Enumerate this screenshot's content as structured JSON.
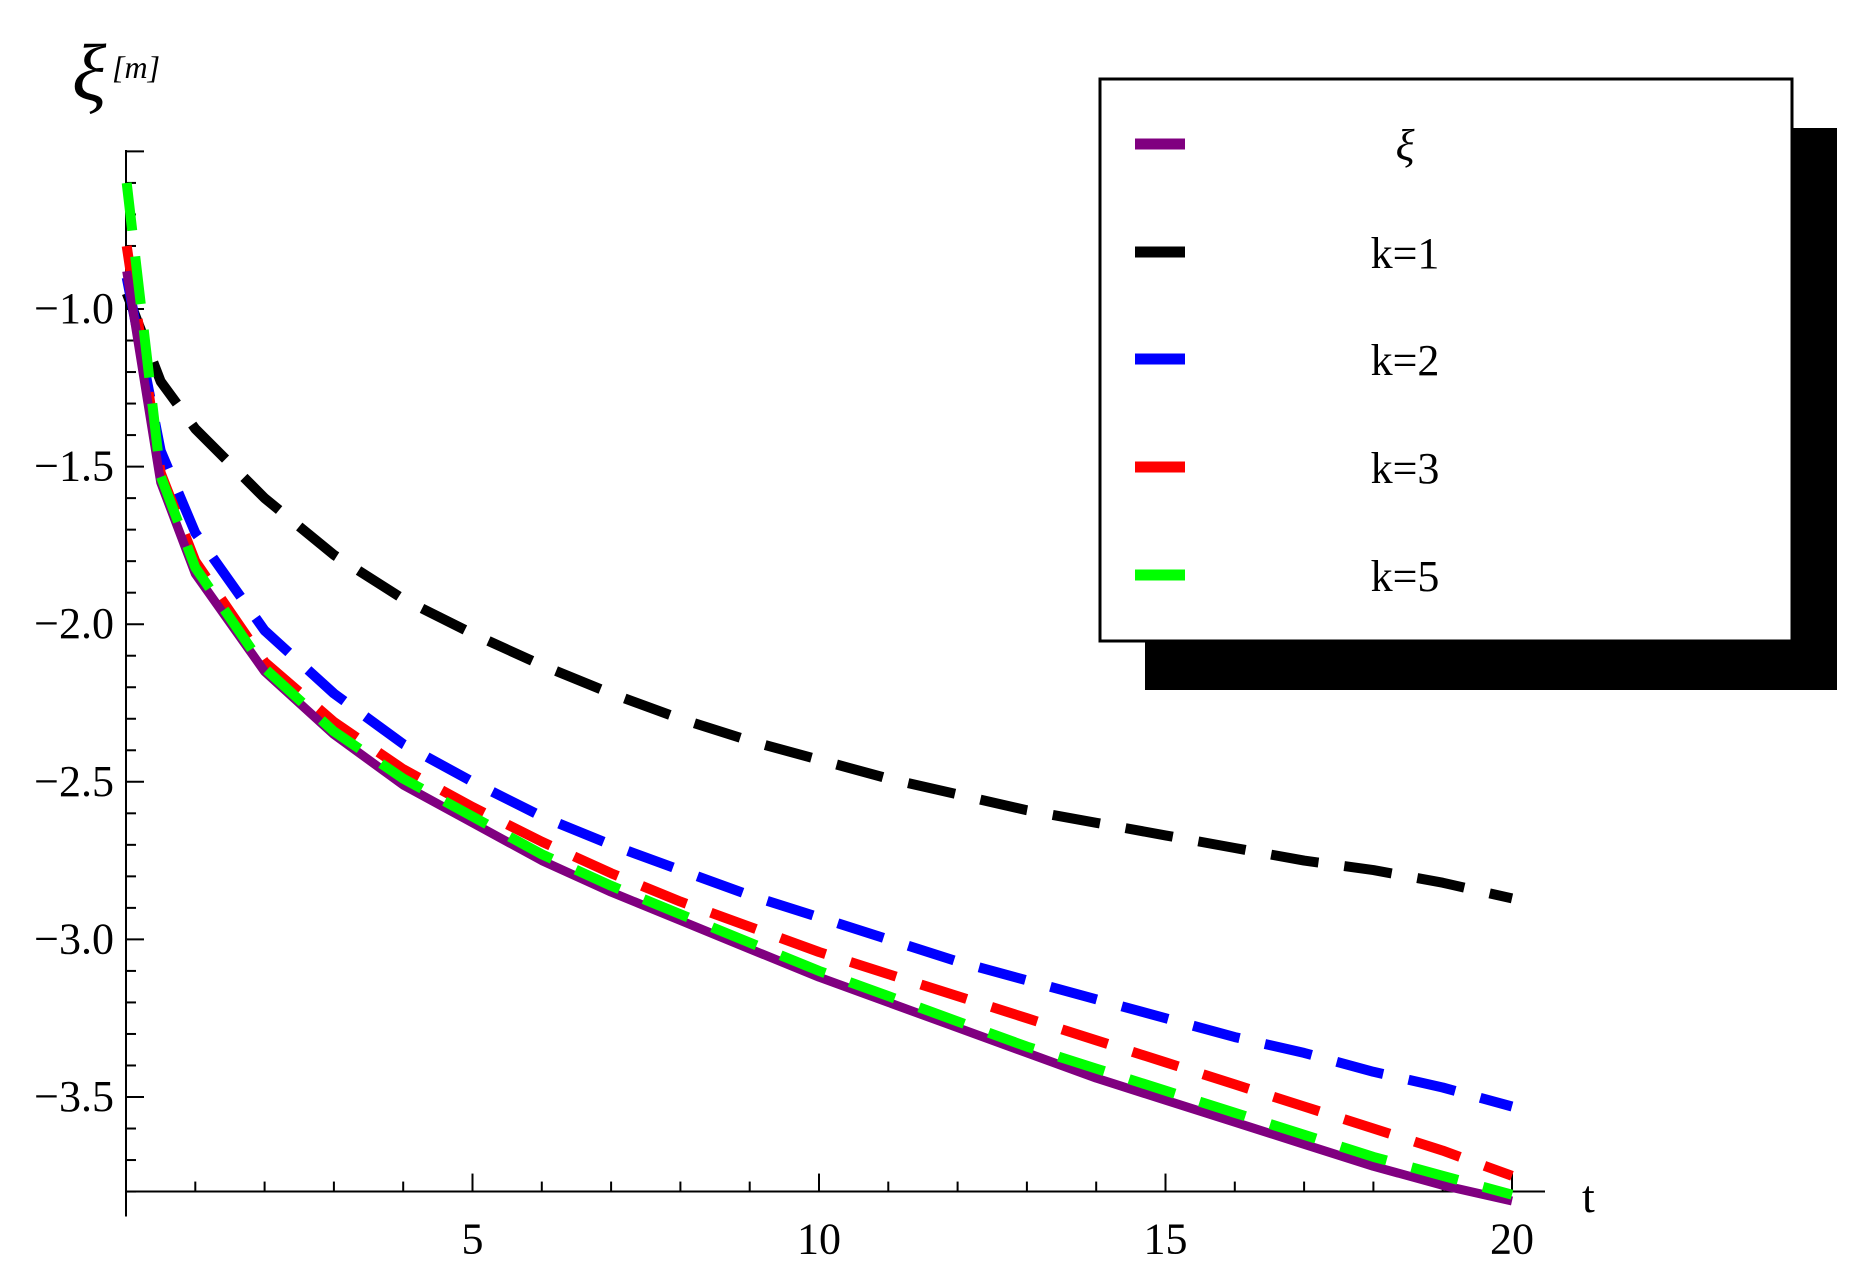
{
  "chart_data": {
    "type": "line",
    "title": "",
    "xlabel": "t",
    "ylabel": "ξ",
    "ylabel_superscript": "[m]",
    "xlim": [
      0,
      20
    ],
    "ylim": [
      -3.8,
      -0.45
    ],
    "x_ticks": [
      5,
      10,
      15,
      20
    ],
    "x_tick_labels": [
      "5",
      "10",
      "15",
      "20"
    ],
    "y_ticks": [
      -1.0,
      -1.5,
      -2.0,
      -2.5,
      -3.0,
      -3.5
    ],
    "y_tick_labels": [
      "-1.0",
      "-1.5",
      "-2.0",
      "-2.5",
      "-3.0",
      "-3.5"
    ],
    "grid": false,
    "legend_position": "top-right",
    "series": [
      {
        "name": "ξ",
        "color": "#800080",
        "style": "solid",
        "x": [
          0.01,
          0.5,
          1,
          2,
          3,
          4,
          5,
          6,
          7,
          8,
          9,
          10,
          11,
          12,
          13,
          14,
          15,
          16,
          17,
          18,
          19,
          20
        ],
        "values": [
          -0.88,
          -1.55,
          -1.84,
          -2.15,
          -2.35,
          -2.51,
          -2.63,
          -2.75,
          -2.85,
          -2.94,
          -3.03,
          -3.12,
          -3.2,
          -3.28,
          -3.36,
          -3.44,
          -3.51,
          -3.58,
          -3.65,
          -3.72,
          -3.78,
          -3.83
        ]
      },
      {
        "name": "k=1",
        "color": "#000000",
        "style": "dashed",
        "x": [
          0.01,
          0.5,
          1,
          2,
          3,
          4,
          5,
          6,
          7,
          8,
          9,
          10,
          11,
          12,
          13,
          14,
          15,
          16,
          17,
          18,
          19,
          20
        ],
        "values": [
          -0.95,
          -1.23,
          -1.38,
          -1.6,
          -1.78,
          -1.92,
          -2.03,
          -2.13,
          -2.22,
          -2.3,
          -2.37,
          -2.43,
          -2.49,
          -2.54,
          -2.59,
          -2.63,
          -2.67,
          -2.71,
          -2.75,
          -2.78,
          -2.82,
          -2.87
        ]
      },
      {
        "name": "k=2",
        "color": "#0000ff",
        "style": "dashed",
        "x": [
          0.01,
          0.5,
          1,
          2,
          3,
          4,
          5,
          6,
          7,
          8,
          9,
          10,
          11,
          12,
          13,
          14,
          15,
          16,
          17,
          18,
          19,
          20
        ],
        "values": [
          -0.9,
          -1.45,
          -1.71,
          -2.02,
          -2.22,
          -2.38,
          -2.5,
          -2.61,
          -2.7,
          -2.78,
          -2.86,
          -2.93,
          -3.0,
          -3.07,
          -3.13,
          -3.19,
          -3.25,
          -3.31,
          -3.36,
          -3.42,
          -3.47,
          -3.53
        ]
      },
      {
        "name": "k=3",
        "color": "#ff0000",
        "style": "dashed",
        "x": [
          0.01,
          0.5,
          1,
          2,
          3,
          4,
          5,
          6,
          7,
          8,
          9,
          10,
          11,
          12,
          13,
          14,
          15,
          16,
          17,
          18,
          19,
          20
        ],
        "values": [
          -0.8,
          -1.52,
          -1.8,
          -2.12,
          -2.31,
          -2.46,
          -2.58,
          -2.69,
          -2.79,
          -2.88,
          -2.96,
          -3.04,
          -3.11,
          -3.18,
          -3.25,
          -3.32,
          -3.39,
          -3.46,
          -3.53,
          -3.6,
          -3.67,
          -3.75
        ]
      },
      {
        "name": "k=5",
        "color": "#00ff00",
        "style": "dashed",
        "x": [
          0.01,
          0.5,
          1,
          2,
          3,
          4,
          5,
          6,
          7,
          8,
          9,
          10,
          11,
          12,
          13,
          14,
          15,
          16,
          17,
          18,
          19,
          20
        ],
        "values": [
          -0.6,
          -1.53,
          -1.82,
          -2.14,
          -2.34,
          -2.49,
          -2.61,
          -2.73,
          -2.83,
          -2.92,
          -3.01,
          -3.1,
          -3.18,
          -3.26,
          -3.34,
          -3.41,
          -3.48,
          -3.55,
          -3.62,
          -3.69,
          -3.75,
          -3.81
        ]
      }
    ]
  }
}
